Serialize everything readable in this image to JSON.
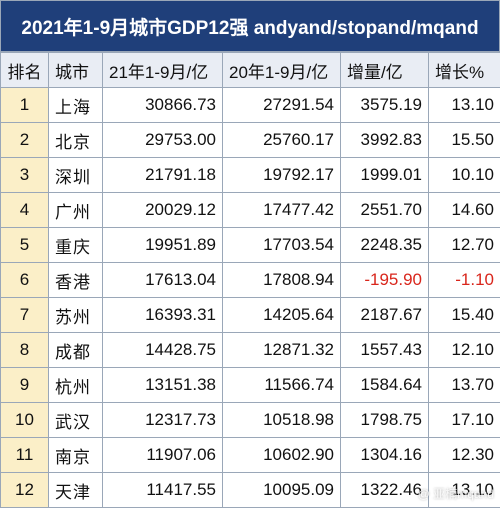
{
  "title": "2021年1-9月城市GDP12强 andyand/stopand/mqand",
  "headers": [
    "排名",
    "城市",
    "21年1-9月/亿",
    "20年1-9月/亿",
    "增量/亿",
    "增长%"
  ],
  "rows": [
    {
      "rank": "1",
      "city": "上海",
      "gdp21": "30866.73",
      "gdp20": "27291.54",
      "inc": "3575.19",
      "growth": "13.10",
      "negative": false
    },
    {
      "rank": "2",
      "city": "北京",
      "gdp21": "29753.00",
      "gdp20": "25760.17",
      "inc": "3992.83",
      "growth": "15.50",
      "negative": false
    },
    {
      "rank": "3",
      "city": "深圳",
      "gdp21": "21791.18",
      "gdp20": "19792.17",
      "inc": "1999.01",
      "growth": "10.10",
      "negative": false
    },
    {
      "rank": "4",
      "city": "广州",
      "gdp21": "20029.12",
      "gdp20": "17477.42",
      "inc": "2551.70",
      "growth": "14.60",
      "negative": false
    },
    {
      "rank": "5",
      "city": "重庆",
      "gdp21": "19951.89",
      "gdp20": "17703.54",
      "inc": "2248.35",
      "growth": "12.70",
      "negative": false
    },
    {
      "rank": "6",
      "city": "香港",
      "gdp21": "17613.04",
      "gdp20": "17808.94",
      "inc": "-195.90",
      "growth": "-1.10",
      "negative": true
    },
    {
      "rank": "7",
      "city": "苏州",
      "gdp21": "16393.31",
      "gdp20": "14205.64",
      "inc": "2187.67",
      "growth": "15.40",
      "negative": false
    },
    {
      "rank": "8",
      "city": "成都",
      "gdp21": "14428.75",
      "gdp20": "12871.32",
      "inc": "1557.43",
      "growth": "12.10",
      "negative": false
    },
    {
      "rank": "9",
      "city": "杭州",
      "gdp21": "13151.38",
      "gdp20": "11566.74",
      "inc": "1584.64",
      "growth": "13.70",
      "negative": false
    },
    {
      "rank": "10",
      "city": "武汉",
      "gdp21": "12317.73",
      "gdp20": "10518.98",
      "inc": "1798.75",
      "growth": "17.10",
      "negative": false
    },
    {
      "rank": "11",
      "city": "南京",
      "gdp21": "11907.06",
      "gdp20": "10602.90",
      "inc": "1304.16",
      "growth": "12.30",
      "negative": false
    },
    {
      "rank": "12",
      "city": "天津",
      "gdp21": "11417.55",
      "gdp20": "10095.09",
      "inc": "1322.46",
      "growth": "13.10",
      "negative": false
    }
  ],
  "watermark": "@ 亚楠mqand",
  "colors": {
    "header_bg": "#1f3f7a",
    "rank_bg": "#fbefc8",
    "negative": "#d9261c"
  }
}
